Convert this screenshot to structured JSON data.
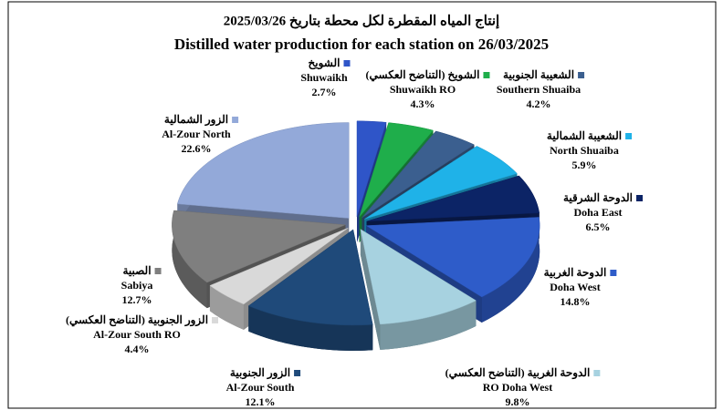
{
  "chart_data": {
    "type": "pie",
    "title_arabic": "إنتاج المياه المقطرة لكل محطة بتاريخ 2025/03/26",
    "title": "Distilled water production for each station on 26/03/2025",
    "categories": [
      "Shuwaikh",
      "Shuwaikh RO",
      "Southern Shuaiba",
      "North Shuaiba",
      "Doha East",
      "Doha West",
      "RO Doha West",
      "Al-Zour South",
      "Al-Zour South RO",
      "Sabiya",
      "Al-Zour North"
    ],
    "categories_arabic": [
      "الشويخ",
      "الشويخ (التناضح العكسي)",
      "الشعيبة الجنوبية",
      "الشعيبة الشمالية",
      "الدوحة الشرقية",
      "الدوحة الغربية",
      "الدوحة الغربية (التناضح العكسي)",
      "الزور الجنوبية",
      "الزور الجنوبية (التناضح العكسي)",
      "الصبية",
      "الزور الشمالية"
    ],
    "values": [
      2.7,
      4.3,
      4.2,
      5.9,
      6.5,
      14.8,
      9.8,
      12.1,
      4.4,
      12.7,
      22.6
    ],
    "value_labels": [
      "2.7%",
      "4.3%",
      "4.2%",
      "5.9%",
      "6.5%",
      "14.8%",
      "9.8%",
      "12.1%",
      "4.4%",
      "12.7%",
      "22.6%"
    ],
    "colors": [
      "#2f55c8",
      "#1fae4b",
      "#3b5f8f",
      "#1fb2e8",
      "#0c2466",
      "#2e5cc9",
      "#a7d2e0",
      "#1f4a7a",
      "#d9d9d9",
      "#7f7f7f",
      "#93a9d9"
    ]
  }
}
